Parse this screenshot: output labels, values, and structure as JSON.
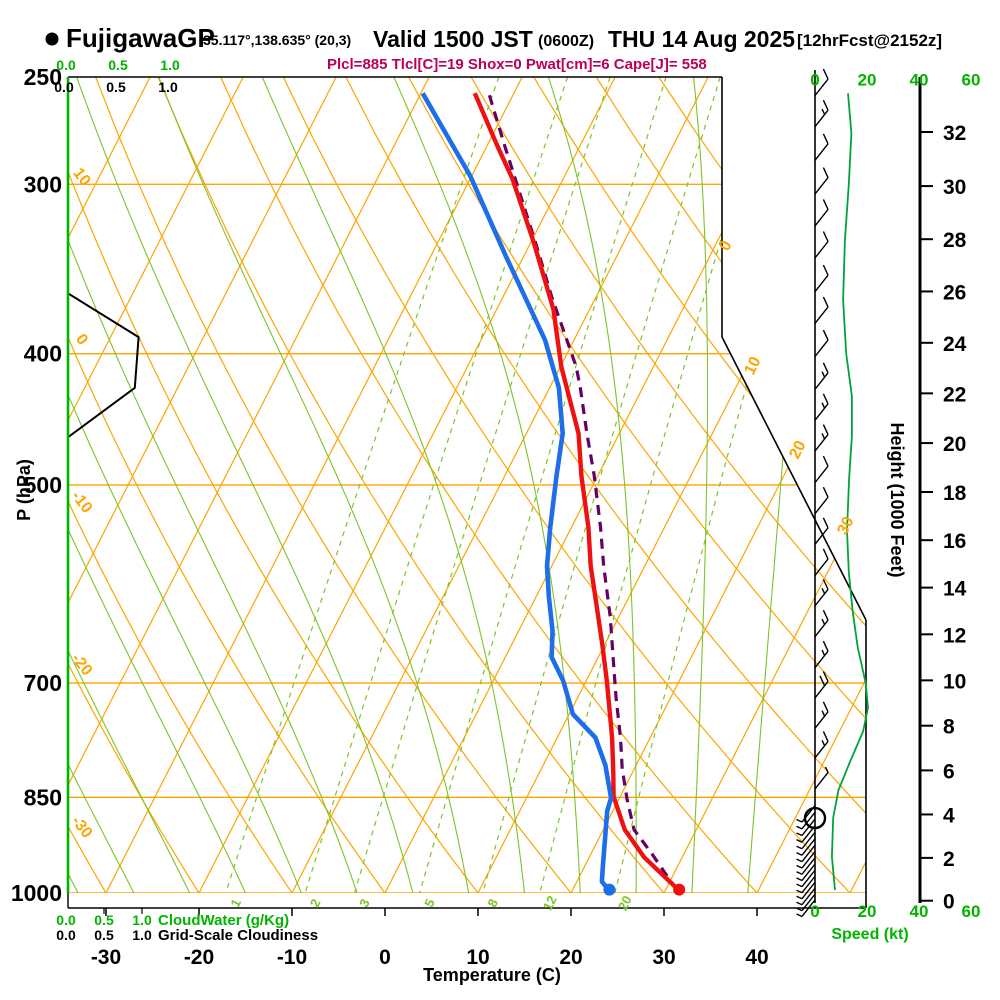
{
  "header": {
    "station": "FujigawaGP",
    "coords": "35.117°,138.635° (20,3)",
    "valid_time": "Valid 1500 JST",
    "valid_zulu": "(0600Z)",
    "valid_date": "THU 14 Aug 2025",
    "forecast_tag": "[12hrFcst@2152z]",
    "params_line": "Plcl=885 Tlcl[C]=19 Shox=0 Pwat[cm]=6 Cape[J]= 558"
  },
  "axis_titles": {
    "pressure": "P (hPa)",
    "temperature": "Temperature (C)",
    "height": "Height (1000 Feet)",
    "speed": "Speed (kt)",
    "cloudwater": "CloudWater (g/Kg)",
    "cloudiness": "Grid-Scale Cloudiness"
  },
  "chart_data": {
    "type": "skewt-sounding",
    "pressure_ticks_hPa": [
      250,
      300,
      400,
      500,
      700,
      850,
      1000
    ],
    "temp_ticks_C": [
      -30,
      -20,
      -10,
      0,
      10,
      20,
      30,
      40
    ],
    "height_ticks_kft": [
      0,
      2,
      4,
      6,
      8,
      10,
      12,
      14,
      16,
      18,
      20,
      22,
      24,
      26,
      28,
      30,
      32
    ],
    "speed_ticks_kt": [
      0,
      20,
      40,
      60
    ],
    "cloud_scale_ticks": [
      "0.0",
      "0.5",
      "1.0"
    ],
    "dry_adiabat_labels_C": [
      10,
      0,
      -10,
      -20,
      -30
    ],
    "isotherm_labels_C": [
      0,
      10,
      20,
      30
    ],
    "mixing_ratio_labels_gkg": [
      1,
      2,
      3,
      5,
      8,
      12,
      20
    ],
    "temperature_profile": [
      [
        996,
        31.5
      ],
      [
        941,
        25.9
      ],
      [
        898,
        22.3
      ],
      [
        849,
        19.3
      ],
      [
        814,
        17.9
      ],
      [
        768,
        15.9
      ],
      [
        697,
        12.2
      ],
      [
        655,
        9.7
      ],
      [
        608,
        6.6
      ],
      [
        574,
        4.2
      ],
      [
        537,
        1.8
      ],
      [
        493,
        -1.7
      ],
      [
        458,
        -4.4
      ],
      [
        409,
        -9.9
      ],
      [
        371,
        -13.9
      ],
      [
        331,
        -19.7
      ],
      [
        297,
        -25.5
      ],
      [
        281,
        -28.9
      ],
      [
        257,
        -34.2
      ]
    ],
    "dewpoint_profile": [
      [
        996,
        24.0
      ],
      [
        981,
        22.7
      ],
      [
        957,
        22.0
      ],
      [
        870,
        19.4
      ],
      [
        851,
        19.1
      ],
      [
        805,
        16.7
      ],
      [
        768,
        14.1
      ],
      [
        738,
        10.4
      ],
      [
        697,
        7.5
      ],
      [
        670,
        5.0
      ],
      [
        640,
        3.6
      ],
      [
        605,
        1.4
      ],
      [
        574,
        -0.5
      ],
      [
        537,
        -2.3
      ],
      [
        493,
        -4.4
      ],
      [
        458,
        -6.1
      ],
      [
        424,
        -9.0
      ],
      [
        391,
        -13.1
      ],
      [
        338,
        -22.1
      ],
      [
        296,
        -30.1
      ],
      [
        257,
        -39.8
      ]
    ],
    "parcel_profile": [
      [
        995,
        31.2
      ],
      [
        935,
        26.5
      ],
      [
        898,
        23.3
      ],
      [
        853,
        20.9
      ],
      [
        810,
        18.7
      ],
      [
        768,
        16.8
      ],
      [
        717,
        14.1
      ],
      [
        670,
        11.6
      ],
      [
        626,
        9.1
      ],
      [
        574,
        5.6
      ],
      [
        537,
        3.1
      ],
      [
        492,
        -0.4
      ],
      [
        458,
        -3.5
      ],
      [
        424,
        -6.7
      ],
      [
        409,
        -8.3
      ],
      [
        363,
        -14.8
      ],
      [
        333,
        -19.2
      ],
      [
        281,
        -28.1
      ],
      [
        257,
        -32.7
      ]
    ],
    "wind_speed_profile_kt": [
      [
        257,
        12.7
      ],
      [
        275,
        14.0
      ],
      [
        300,
        13.0
      ],
      [
        330,
        11.5
      ],
      [
        365,
        10.8
      ],
      [
        400,
        12.0
      ],
      [
        430,
        14.2
      ],
      [
        460,
        14.2
      ],
      [
        495,
        13.1
      ],
      [
        540,
        12.3
      ],
      [
        580,
        13.0
      ],
      [
        620,
        14.5
      ],
      [
        660,
        16.5
      ],
      [
        700,
        19.5
      ],
      [
        730,
        20.4
      ],
      [
        760,
        18.5
      ],
      [
        800,
        13.5
      ],
      [
        840,
        9.0
      ],
      [
        880,
        7.0
      ],
      [
        940,
        6.5
      ],
      [
        995,
        7.7
      ]
    ],
    "cloudiness_profile": [
      [
        250,
        0
      ],
      [
        361,
        0
      ],
      [
        389,
        0.56
      ],
      [
        424,
        0.53
      ],
      [
        461,
        0
      ],
      [
        1000,
        0
      ]
    ],
    "cloudwater_profile_gkg": [
      [
        250,
        0
      ],
      [
        1000,
        0
      ]
    ],
    "surface": {
      "pressure_hPa": 996,
      "temp_C": 31.5,
      "dewpoint_C": 24.0
    },
    "lcl_pressure_hPa": 885,
    "colors": {
      "grid": "#ffa400",
      "moist_green": "#7cc428",
      "temperature": "#ee1111",
      "dewpoint": "#1d6ee8",
      "parcel": "#660066",
      "speed_curve": "#00a43c",
      "green_text": "#00b400",
      "params_text": "#bb0055"
    }
  }
}
